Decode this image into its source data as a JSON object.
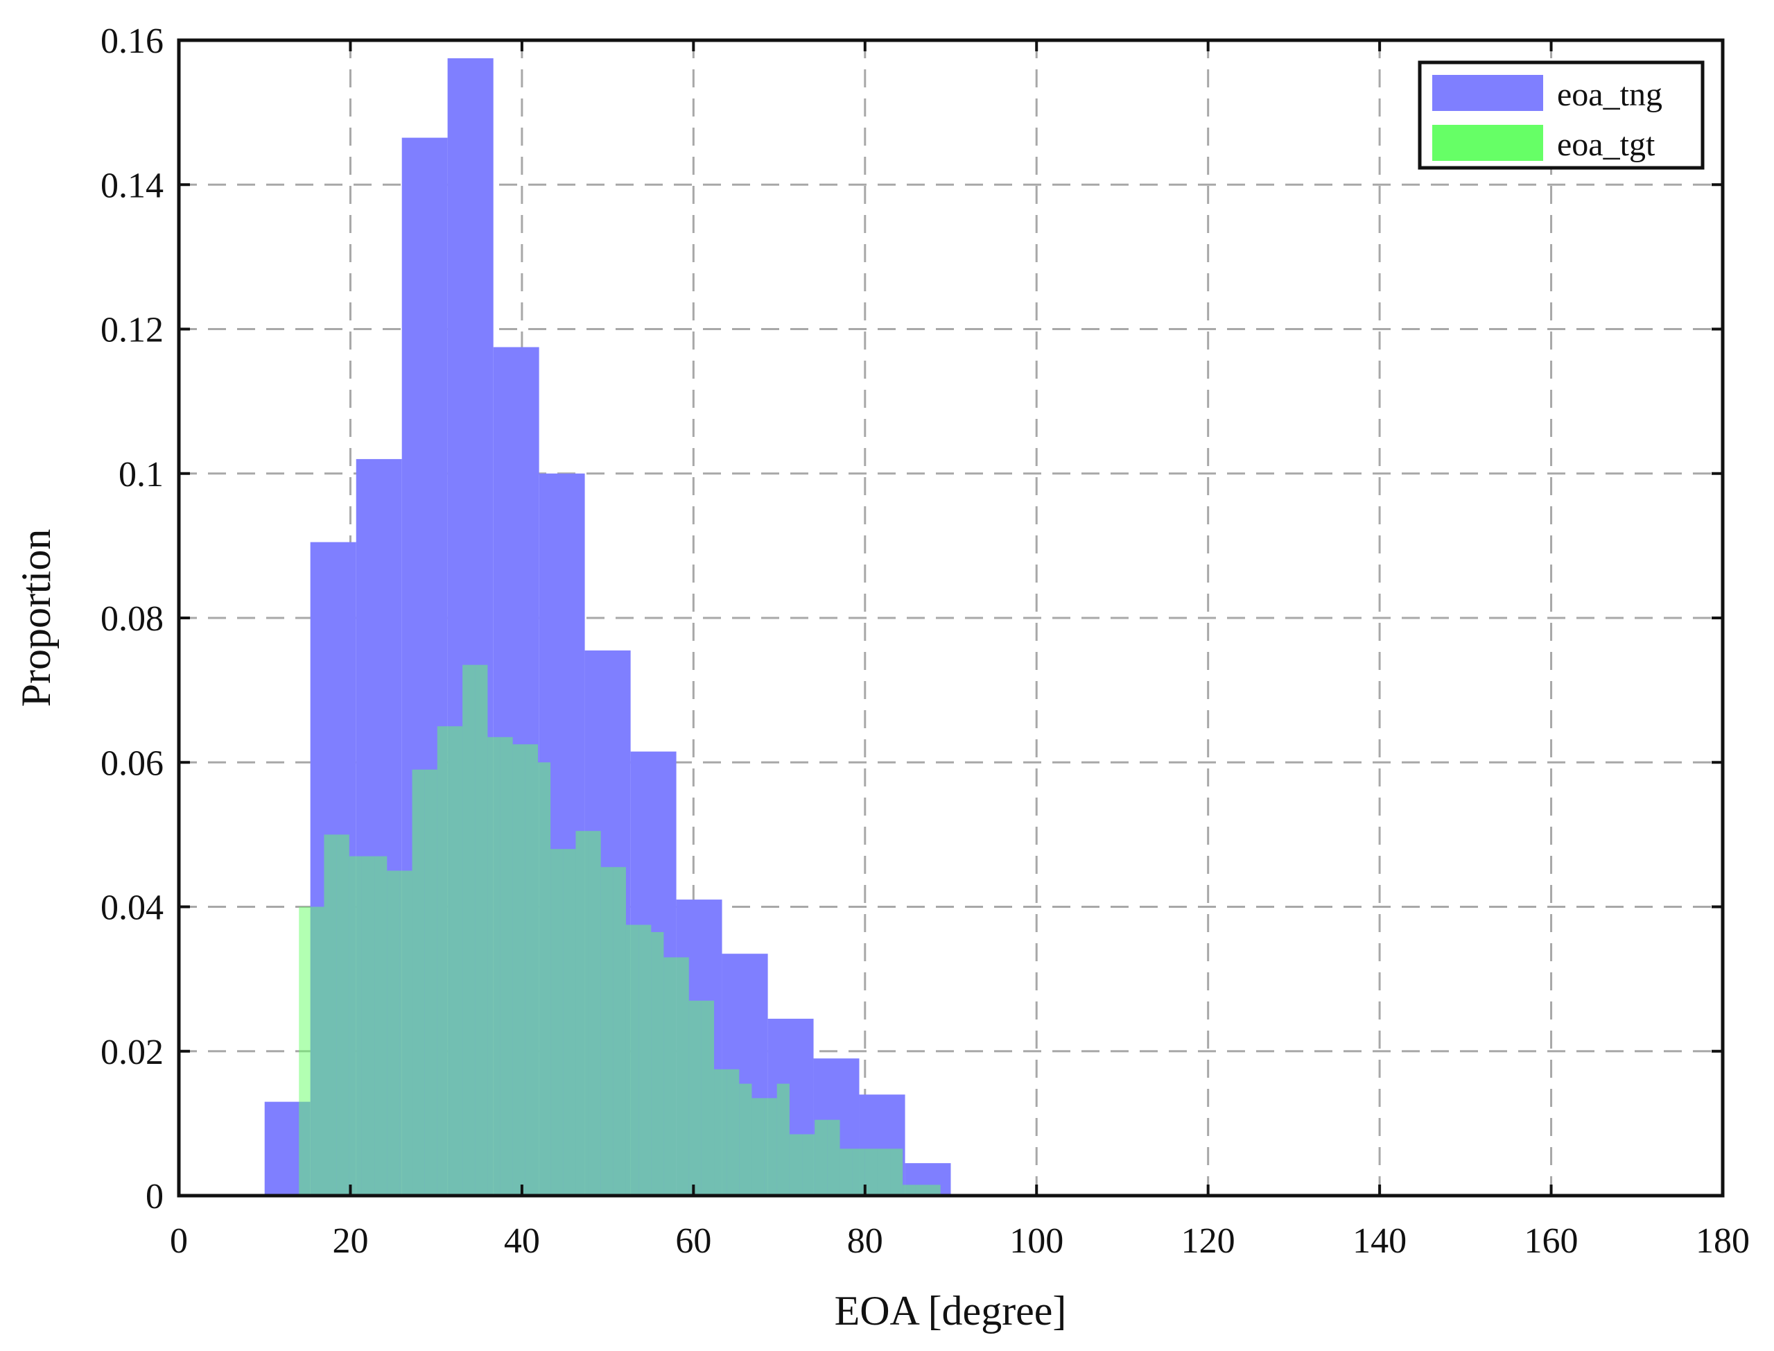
{
  "chart_data": {
    "type": "bar",
    "subtype": "overlaid-histogram",
    "title": "",
    "xlabel": "EOA [degree]",
    "ylabel": "Proportion",
    "xlim": [
      0,
      180
    ],
    "ylim": [
      0,
      0.16
    ],
    "x_ticks": [
      0,
      20,
      40,
      60,
      80,
      100,
      120,
      140,
      160,
      180
    ],
    "y_ticks": [
      0,
      0.02,
      0.04,
      0.06,
      0.08,
      0.1,
      0.12,
      0.14,
      0.16
    ],
    "y_tick_labels": [
      "0",
      "0.02",
      "0.04",
      "0.06",
      "0.08",
      "0.1",
      "0.12",
      "0.14",
      "0.16"
    ],
    "grid": true,
    "legend_position": "top-right",
    "series": [
      {
        "name": "eoa_tng",
        "color": "#7f7fff",
        "bin_edges": [
          10,
          15.33,
          20.67,
          26,
          31.33,
          36.67,
          42,
          47.33,
          52.67,
          58,
          63.33,
          68.67,
          74,
          79.33,
          84.67,
          90
        ],
        "values": [
          0.013,
          0.0905,
          0.102,
          0.1465,
          0.1575,
          0.1175,
          0.1,
          0.0755,
          0.0615,
          0.041,
          0.0335,
          0.0245,
          0.019,
          0.014,
          0.0045
        ]
      },
      {
        "name": "eoa_tgt",
        "color": "#66ff66",
        "bin_edges": [
          14,
          15.47,
          16.93,
          18.4,
          19.87,
          21.33,
          22.8,
          24.27,
          25.73,
          27.2,
          28.67,
          30.13,
          31.6,
          33.07,
          34.53,
          36,
          37.47,
          38.93,
          40.4,
          41.87,
          43.33,
          44.8,
          46.27,
          47.73,
          49.2,
          50.67,
          52.13,
          53.6,
          55.07,
          56.53,
          58,
          59.47,
          60.93,
          62.4,
          63.87,
          65.33,
          66.8,
          68.27,
          69.73,
          71.2,
          72.67,
          74.13,
          75.6,
          77.07,
          78.53,
          80,
          81.47,
          82.93,
          84.4,
          85.87,
          87.33,
          88.8
        ],
        "values": [
          0.04,
          0.04,
          0.05,
          0.05,
          0.047,
          0.047,
          0.047,
          0.045,
          0.045,
          0.059,
          0.059,
          0.065,
          0.065,
          0.0735,
          0.0735,
          0.0635,
          0.0635,
          0.0625,
          0.0625,
          0.06,
          0.048,
          0.048,
          0.0505,
          0.0505,
          0.0455,
          0.0455,
          0.0375,
          0.0375,
          0.0365,
          0.033,
          0.033,
          0.027,
          0.027,
          0.0175,
          0.0175,
          0.0155,
          0.0135,
          0.0135,
          0.0155,
          0.0085,
          0.0085,
          0.0105,
          0.0105,
          0.0065,
          0.0065,
          0.0065,
          0.0065,
          0.0065,
          0.0015,
          0.0015,
          0.0015
        ]
      }
    ]
  }
}
